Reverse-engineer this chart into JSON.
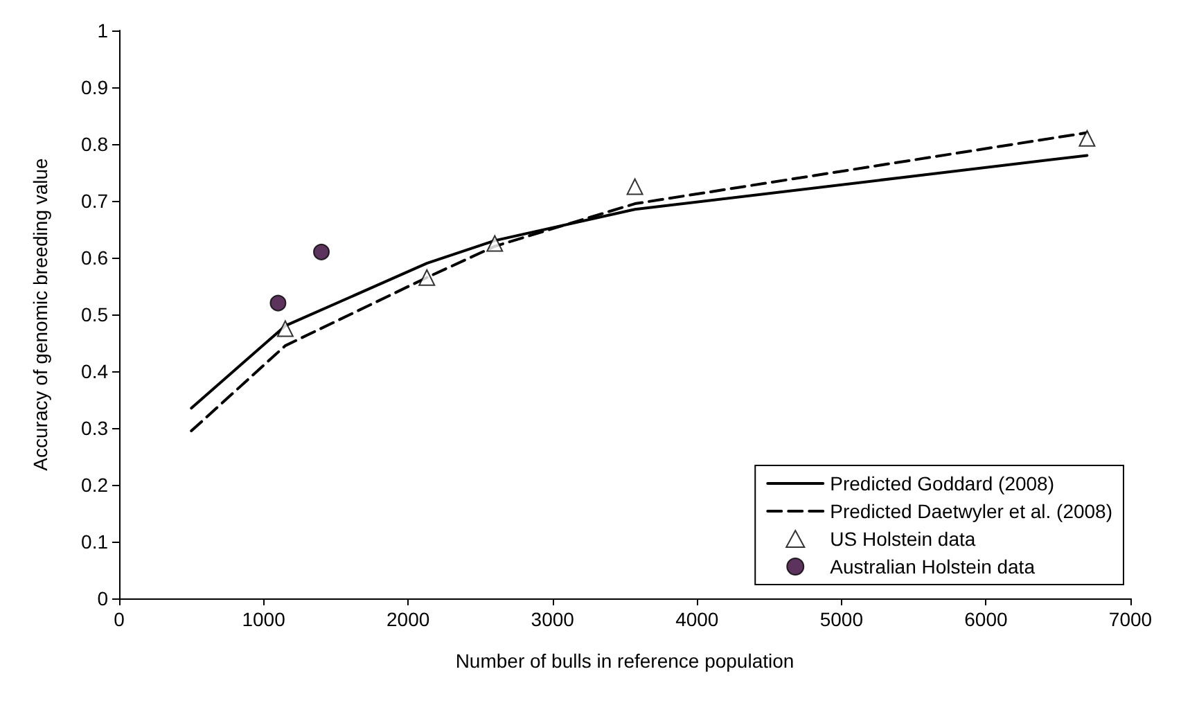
{
  "chart_data": {
    "type": "line",
    "xlabel": "Number of bulls in reference population",
    "ylabel": "Accuracy of genomic breeding value",
    "xlim": [
      0,
      7000
    ],
    "xticks": [
      0,
      1000,
      2000,
      3000,
      4000,
      5000,
      6000,
      7000
    ],
    "ylim": [
      0,
      1
    ],
    "yticks": [
      0,
      0.1,
      0.2,
      0.3,
      0.4,
      0.5,
      0.6,
      0.7,
      0.8,
      0.9,
      1
    ],
    "grid": false,
    "legend": "bottom right",
    "series": [
      {
        "name": "Predicted Goddard (2008)",
        "type": "line",
        "color": "#000000",
        "line_style": "solid",
        "marker": "none",
        "x": [
          500,
          1150,
          2130,
          2600,
          3570,
          6700
        ],
        "values": [
          0.335,
          0.48,
          0.59,
          0.63,
          0.685,
          0.78
        ]
      },
      {
        "name": "Predicted Daetwyler et al. (2008)",
        "type": "line",
        "color": "#000000",
        "line_style": "dashed",
        "marker": "none",
        "x": [
          500,
          1150,
          2130,
          2600,
          3570,
          6700
        ],
        "values": [
          0.295,
          0.445,
          0.565,
          0.62,
          0.695,
          0.82
        ]
      },
      {
        "name": "US Holstein data",
        "type": "scatter",
        "color": "#ffffff",
        "marker": "triangle",
        "x": [
          1150,
          2130,
          2600,
          3570,
          6700
        ],
        "values": [
          0.475,
          0.565,
          0.625,
          0.725,
          0.81
        ]
      },
      {
        "name": "Australian Holstein data",
        "type": "scatter",
        "color": "#330033",
        "marker": "circle",
        "x": [
          1100,
          1400
        ],
        "values": [
          0.52,
          0.61
        ]
      }
    ]
  }
}
